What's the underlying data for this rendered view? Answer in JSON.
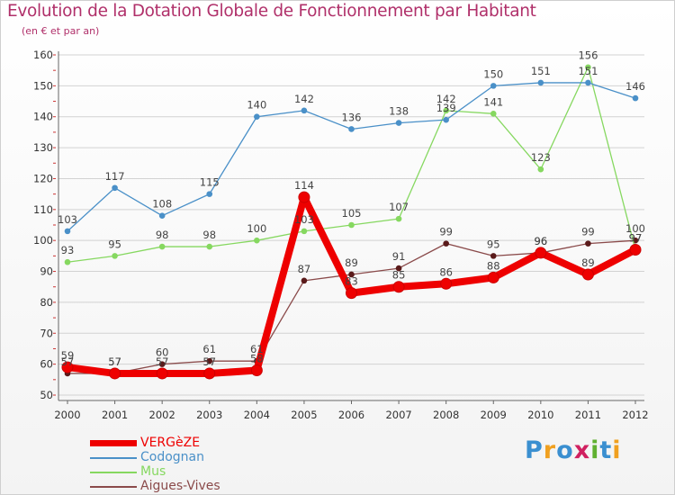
{
  "header": {
    "title": "Evolution de la Dotation Globale de Fonctionnement par Habitant",
    "subtitle": "(en € et par an)"
  },
  "brand": {
    "text": "Proxiti",
    "colors": [
      "#3a8fd0",
      "#f0a020",
      "#3a8fd0",
      "#d02060",
      "#60b030",
      "#3a8fd0",
      "#f0a020"
    ]
  },
  "chart_data": {
    "type": "line",
    "title": "Evolution de la Dotation Globale de Fonctionnement par Habitant",
    "subtitle": "(en € et par an)",
    "xlabel": "",
    "ylabel": "",
    "ylim": [
      50,
      160
    ],
    "yticks": [
      "50",
      "60",
      "70",
      "80",
      "90",
      "100",
      "110",
      "120",
      "130",
      "140",
      "150",
      "160"
    ],
    "categories": [
      "2000",
      "2001",
      "2002",
      "2003",
      "2004",
      "2005",
      "2006",
      "2007",
      "2008",
      "2009",
      "2010",
      "2011",
      "2012"
    ],
    "legend_position": "bottom-left",
    "series": [
      {
        "name": "VERGèZE",
        "color": "#ee0000",
        "values": [
          59,
          57,
          57,
          57,
          58,
          114,
          83,
          85,
          86,
          88,
          96,
          89,
          97
        ],
        "labels": [
          "59",
          "57",
          "57",
          "57",
          "58",
          "114",
          "83",
          "85",
          "86",
          "88",
          "96",
          "89",
          "97"
        ]
      },
      {
        "name": "Codognan",
        "color": "#4a90c8",
        "values": [
          103,
          117,
          108,
          115,
          140,
          142,
          136,
          138,
          139,
          150,
          151,
          151,
          146
        ],
        "labels": [
          "103",
          "117",
          "108",
          "115",
          "140",
          "142",
          "136",
          "138",
          "139",
          "150",
          "151",
          "151",
          "146"
        ]
      },
      {
        "name": "Mus",
        "color": "#86d860",
        "values": [
          93,
          95,
          98,
          98,
          100,
          103,
          105,
          107,
          142,
          141,
          123,
          156,
          97
        ],
        "labels": [
          "93",
          "95",
          "98",
          "98",
          "100",
          "103",
          "105",
          "107",
          "142",
          "141",
          "123",
          "156",
          "97"
        ]
      },
      {
        "name": "Aigues-Vives",
        "color": "#8a4a4a",
        "values": [
          57,
          57,
          60,
          61,
          61,
          87,
          89,
          91,
          99,
          95,
          96,
          99,
          100
        ],
        "labels": [
          "57",
          "57",
          "60",
          "61",
          "61",
          "87",
          "89",
          "91",
          "99",
          "95",
          "96",
          "99",
          "100"
        ]
      }
    ]
  }
}
